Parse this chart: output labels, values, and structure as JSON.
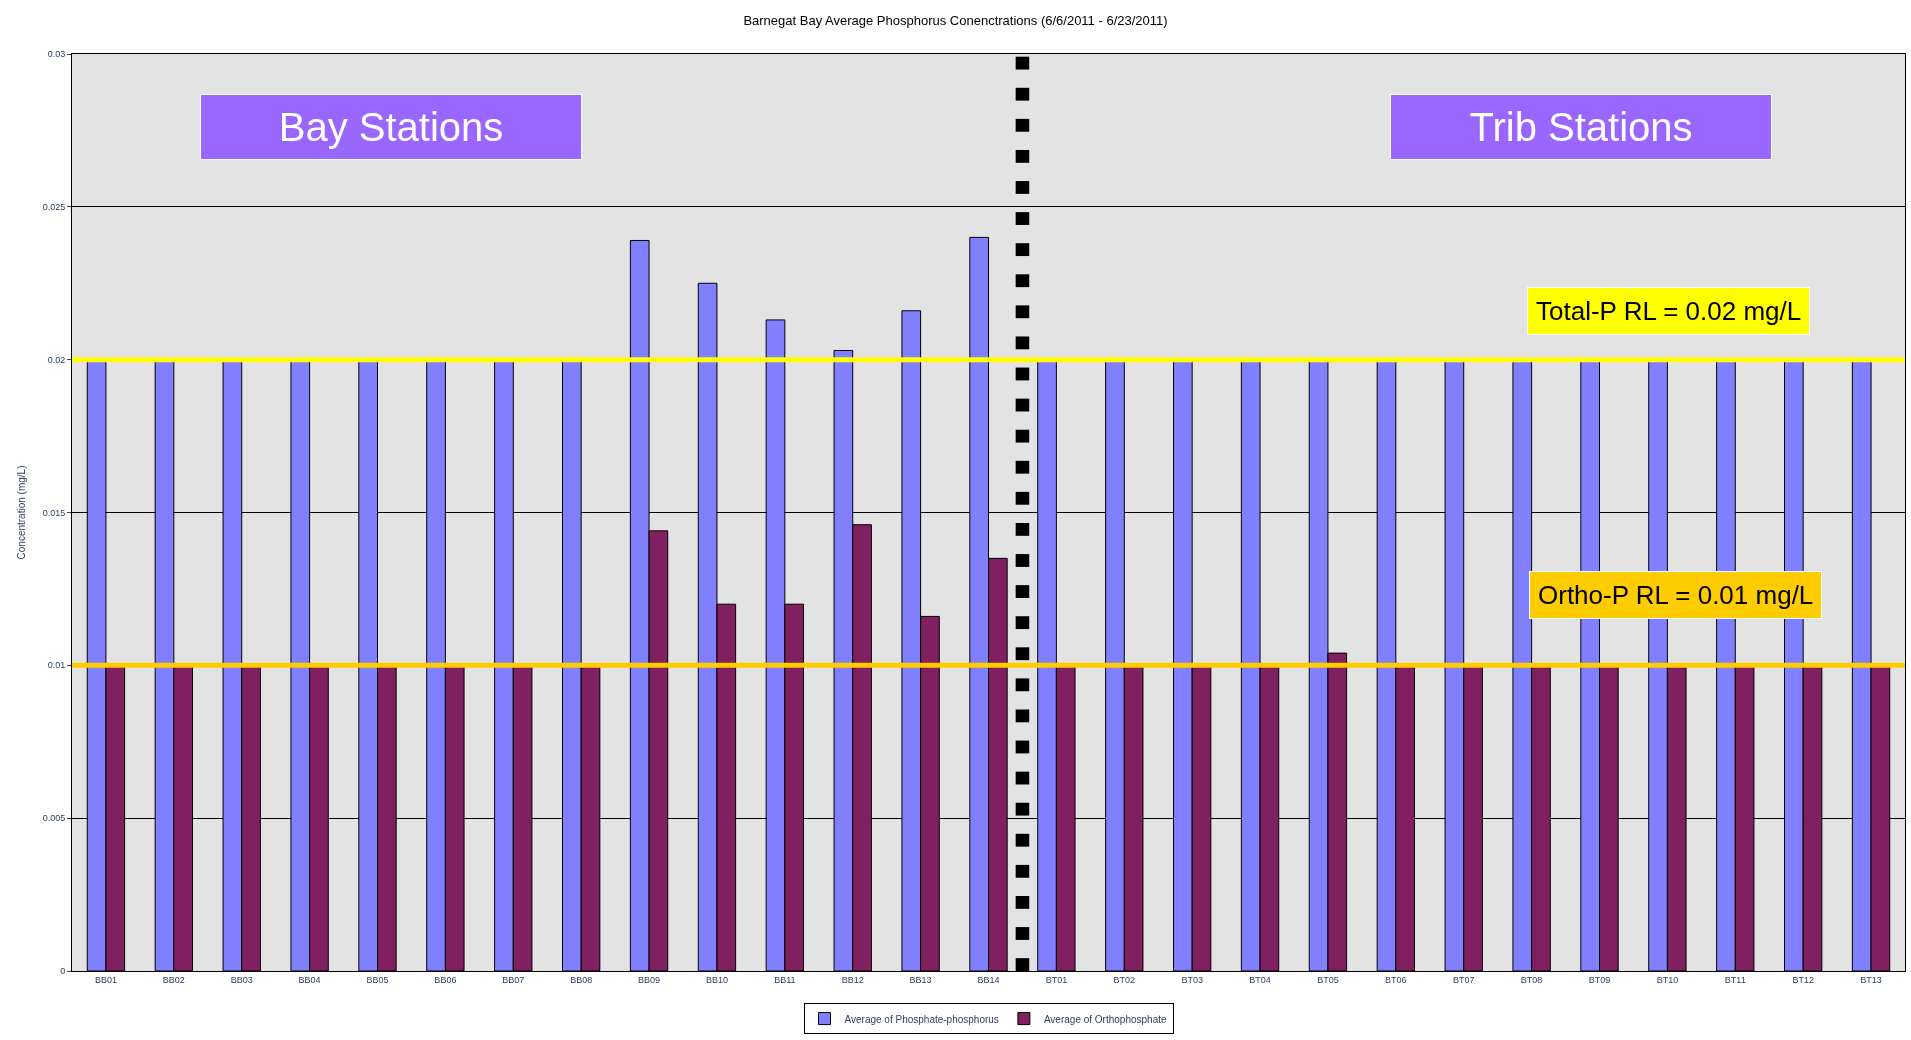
{
  "chart_data": {
    "type": "bar",
    "title": "Barnegat Bay Average Phosphorus Conenctrations (6/6/2011 - 6/23/2011)",
    "ylabel": "Concentration (mg/L)",
    "categories": [
      "BB01",
      "BB02",
      "BB03",
      "BB04",
      "BB05",
      "BB06",
      "BB07",
      "BB08",
      "BB09",
      "BB10",
      "BB11",
      "BB12",
      "BB13",
      "BB14",
      "BT01",
      "BT02",
      "BT03",
      "BT04",
      "BT05",
      "BT06",
      "BT07",
      "BT08",
      "BT09",
      "BT10",
      "BT11",
      "BT12",
      "BT13"
    ],
    "series": [
      {
        "name": "Average of Phosphate-phosphorus",
        "color": "#8080ff",
        "values": [
          0.02,
          0.02,
          0.02,
          0.02,
          0.02,
          0.02,
          0.02,
          0.02,
          0.0239,
          0.0225,
          0.0213,
          0.0203,
          0.0216,
          0.024,
          0.02,
          0.02,
          0.02,
          0.02,
          0.02,
          0.02,
          0.02,
          0.02,
          0.02,
          0.02,
          0.02,
          0.02,
          0.02
        ]
      },
      {
        "name": "Average of Orthophosphate",
        "color": "#802060",
        "values": [
          0.01,
          0.01,
          0.01,
          0.01,
          0.01,
          0.01,
          0.01,
          0.01,
          0.0144,
          0.012,
          0.012,
          0.0146,
          0.0116,
          0.0135,
          0.01,
          0.01,
          0.01,
          0.01,
          0.0104,
          0.01,
          0.01,
          0.01,
          0.01,
          0.01,
          0.01,
          0.01,
          0.01
        ]
      }
    ],
    "ylim": [
      0,
      0.03
    ],
    "yticks": [
      0,
      0.005,
      0.01,
      0.015,
      0.02,
      0.025,
      0.03
    ],
    "grid": "y",
    "legend": "bottom",
    "ref_lines": [
      {
        "axis": "y",
        "value": 0.02,
        "label": "Total-P RL = 0.02 mg/L",
        "color": "#ffff00"
      },
      {
        "axis": "y",
        "value": 0.01,
        "label": "Ortho-P RL = 0.01 mg/L",
        "color": "#ffcc00"
      }
    ],
    "annotations": [
      "Bay Stations",
      "Trib Stations"
    ]
  }
}
